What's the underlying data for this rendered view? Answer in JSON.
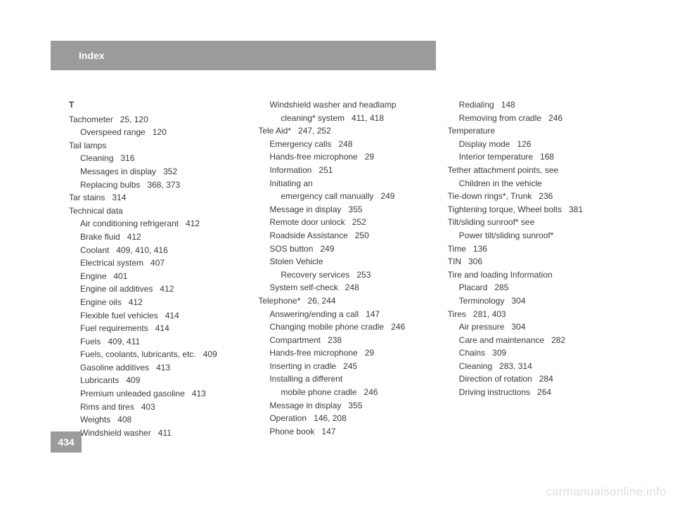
{
  "header": {
    "title": "Index"
  },
  "pageNumber": "434",
  "watermark": "carmanualsonline.info",
  "columns": [
    {
      "letter": "T",
      "entries": [
        {
          "level": 0,
          "label": "Tachometer",
          "pages": "25, 120"
        },
        {
          "level": 1,
          "label": "Overspeed range",
          "pages": "120"
        },
        {
          "level": 0,
          "label": "Tail lamps",
          "pages": ""
        },
        {
          "level": 1,
          "label": "Cleaning",
          "pages": "316"
        },
        {
          "level": 1,
          "label": "Messages in display",
          "pages": "352"
        },
        {
          "level": 1,
          "label": "Replacing bulbs",
          "pages": "368, 373"
        },
        {
          "level": 0,
          "label": "Tar stains",
          "pages": "314"
        },
        {
          "level": 0,
          "label": "Technical data",
          "pages": ""
        },
        {
          "level": 1,
          "label": "Air conditioning refrigerant",
          "pages": "412"
        },
        {
          "level": 1,
          "label": "Brake fluid",
          "pages": "412"
        },
        {
          "level": 1,
          "label": "Coolant",
          "pages": "409, 410, 416"
        },
        {
          "level": 1,
          "label": "Electrical system",
          "pages": "407"
        },
        {
          "level": 1,
          "label": "Engine",
          "pages": "401"
        },
        {
          "level": 1,
          "label": "Engine oil additives",
          "pages": "412"
        },
        {
          "level": 1,
          "label": "Engine oils",
          "pages": "412"
        },
        {
          "level": 1,
          "label": "Flexible fuel vehicles",
          "pages": "414"
        },
        {
          "level": 1,
          "label": "Fuel requirements",
          "pages": "414"
        },
        {
          "level": 1,
          "label": "Fuels",
          "pages": "409, 411"
        },
        {
          "level": 1,
          "label": "Fuels, coolants, lubricants, etc.",
          "pages": "409"
        },
        {
          "level": 1,
          "label": "Gasoline additives",
          "pages": "413"
        },
        {
          "level": 1,
          "label": "Lubricants",
          "pages": "409"
        },
        {
          "level": 1,
          "label": "Premium unleaded gasoline",
          "pages": "413"
        },
        {
          "level": 1,
          "label": "Rims and tires",
          "pages": "403"
        },
        {
          "level": 1,
          "label": "Weights",
          "pages": "408"
        },
        {
          "level": 1,
          "label": "Windshield washer",
          "pages": "411"
        }
      ]
    },
    {
      "letter": "",
      "entries": [
        {
          "level": 1,
          "label": "Windshield washer and headlamp",
          "pages": ""
        },
        {
          "level": 2,
          "label": "cleaning* system",
          "pages": "411, 418"
        },
        {
          "level": 0,
          "label": "Tele Aid*",
          "pages": "247, 252"
        },
        {
          "level": 1,
          "label": "Emergency calls",
          "pages": "248"
        },
        {
          "level": 1,
          "label": "Hands-free microphone",
          "pages": "29"
        },
        {
          "level": 1,
          "label": "Information",
          "pages": "251"
        },
        {
          "level": 1,
          "label": "Initiating an",
          "pages": ""
        },
        {
          "level": 2,
          "label": "emergency call manually",
          "pages": "249"
        },
        {
          "level": 1,
          "label": "Message in display",
          "pages": "355"
        },
        {
          "level": 1,
          "label": "Remote door unlock",
          "pages": "252"
        },
        {
          "level": 1,
          "label": "Roadside Assistance",
          "pages": "250"
        },
        {
          "level": 1,
          "label": "SOS button",
          "pages": "249"
        },
        {
          "level": 1,
          "label": "Stolen Vehicle",
          "pages": ""
        },
        {
          "level": 2,
          "label": "Recovery services",
          "pages": "253"
        },
        {
          "level": 1,
          "label": "System self-check",
          "pages": "248"
        },
        {
          "level": 0,
          "label": "Telephone*",
          "pages": "26, 244"
        },
        {
          "level": 1,
          "label": "Answering/ending a call",
          "pages": "147"
        },
        {
          "level": 1,
          "label": "Changing mobile phone cradle",
          "pages": "246"
        },
        {
          "level": 1,
          "label": "Compartment",
          "pages": "238"
        },
        {
          "level": 1,
          "label": "Hands-free microphone",
          "pages": "29"
        },
        {
          "level": 1,
          "label": "Inserting in cradle",
          "pages": "245"
        },
        {
          "level": 1,
          "label": "Installing a different",
          "pages": ""
        },
        {
          "level": 2,
          "label": "mobile phone cradle",
          "pages": "246"
        },
        {
          "level": 1,
          "label": "Message in display",
          "pages": "355"
        },
        {
          "level": 1,
          "label": "Operation",
          "pages": "146, 208"
        },
        {
          "level": 1,
          "label": "Phone book",
          "pages": "147"
        }
      ]
    },
    {
      "letter": "",
      "entries": [
        {
          "level": 1,
          "label": "Redialing",
          "pages": "148"
        },
        {
          "level": 1,
          "label": "Removing from cradle",
          "pages": "246"
        },
        {
          "level": 0,
          "label": "Temperature",
          "pages": ""
        },
        {
          "level": 1,
          "label": "Display mode",
          "pages": "126"
        },
        {
          "level": 1,
          "label": "Interior temperature",
          "pages": "168"
        },
        {
          "level": 0,
          "label": "Tether attachment points, see",
          "pages": ""
        },
        {
          "level": 1,
          "label": "Children in the vehicle",
          "pages": ""
        },
        {
          "level": 0,
          "label": "Tie-down rings*, Trunk",
          "pages": "236"
        },
        {
          "level": 0,
          "label": "Tightening torque, Wheel bolts",
          "pages": "381"
        },
        {
          "level": 0,
          "label": "Tilt/sliding sunroof* see",
          "pages": ""
        },
        {
          "level": 1,
          "label": "Power tilt/sliding sunroof*",
          "pages": ""
        },
        {
          "level": 0,
          "label": "Time",
          "pages": "136"
        },
        {
          "level": 0,
          "label": "TIN",
          "pages": "306"
        },
        {
          "level": 0,
          "label": "Tire and loading Information",
          "pages": ""
        },
        {
          "level": 1,
          "label": "Placard",
          "pages": "285"
        },
        {
          "level": 1,
          "label": "Terminology",
          "pages": "304"
        },
        {
          "level": 0,
          "label": "Tires",
          "pages": "281, 403"
        },
        {
          "level": 1,
          "label": "Air pressure",
          "pages": "304"
        },
        {
          "level": 1,
          "label": "Care and maintenance",
          "pages": "282"
        },
        {
          "level": 1,
          "label": "Chains",
          "pages": "309"
        },
        {
          "level": 1,
          "label": "Cleaning",
          "pages": "283, 314"
        },
        {
          "level": 1,
          "label": "Direction of rotation",
          "pages": "284"
        },
        {
          "level": 1,
          "label": "Driving instructions",
          "pages": "264"
        }
      ]
    }
  ]
}
